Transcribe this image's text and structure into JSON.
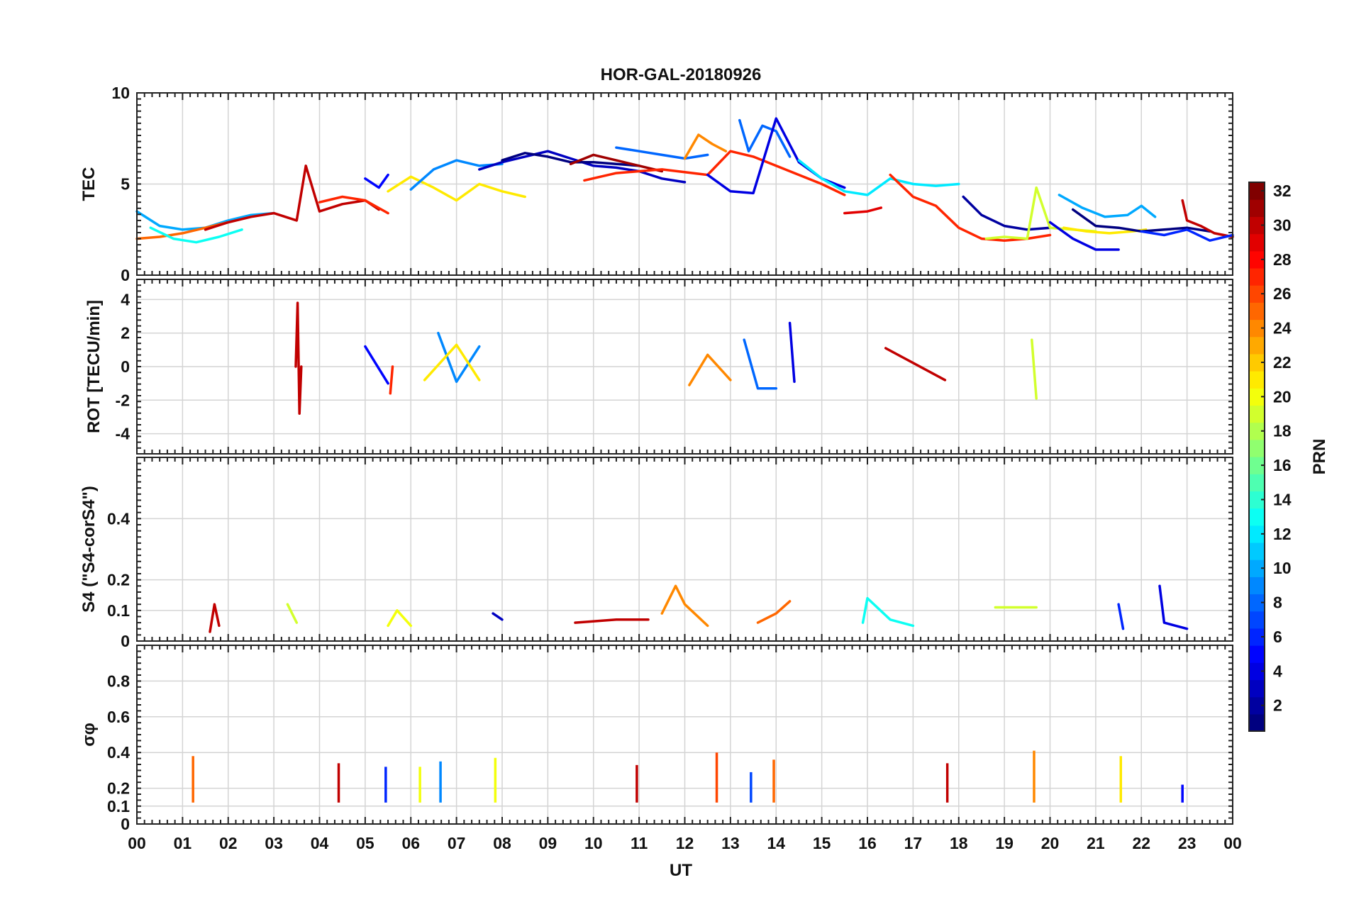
{
  "chart_data": {
    "type": "line",
    "title": "HOR-GAL-20180926",
    "xlabel": "UT",
    "x_tick_labels": [
      "00",
      "01",
      "02",
      "03",
      "04",
      "05",
      "06",
      "07",
      "08",
      "09",
      "10",
      "11",
      "12",
      "13",
      "14",
      "15",
      "16",
      "17",
      "18",
      "19",
      "20",
      "21",
      "22",
      "23",
      "00"
    ],
    "xlim_hours": [
      0,
      24
    ],
    "grid": true,
    "colorbar": {
      "label": "PRN",
      "range": [
        1,
        32
      ],
      "colormap": "jet",
      "tick_labels": [
        "2",
        "4",
        "6",
        "8",
        "10",
        "12",
        "14",
        "16",
        "18",
        "20",
        "22",
        "24",
        "26",
        "28",
        "30",
        "32"
      ]
    },
    "panels": [
      {
        "ylabel": "TEC",
        "ylim": [
          0,
          10
        ],
        "y_tick_labels": [
          "0",
          "5",
          "10"
        ],
        "series": [
          {
            "prn": 10,
            "x": [
              0.0,
              0.5,
              1.0,
              1.5,
              2.0,
              2.5,
              3.0
            ],
            "y": [
              3.5,
              2.7,
              2.5,
              2.6,
              3.0,
              3.3,
              3.4
            ]
          },
          {
            "prn": 25,
            "x": [
              0.0,
              0.5,
              1.0,
              1.5,
              2.0
            ],
            "y": [
              2.0,
              2.1,
              2.3,
              2.6,
              2.9
            ]
          },
          {
            "prn": 13,
            "x": [
              0.3,
              0.8,
              1.3,
              1.8,
              2.3
            ],
            "y": [
              2.6,
              2.0,
              1.8,
              2.1,
              2.5
            ]
          },
          {
            "prn": 30,
            "x": [
              1.5,
              2.0,
              2.5,
              3.0,
              3.5,
              3.7,
              4.0,
              4.5,
              5.0,
              5.3
            ],
            "y": [
              2.5,
              2.9,
              3.2,
              3.4,
              3.0,
              6.0,
              3.5,
              3.9,
              4.1,
              3.6
            ]
          },
          {
            "prn": 27,
            "x": [
              4.0,
              4.5,
              5.0,
              5.5
            ],
            "y": [
              4.0,
              4.3,
              4.1,
              3.4
            ]
          },
          {
            "prn": 5,
            "x": [
              5.0,
              5.3,
              5.5
            ],
            "y": [
              5.3,
              4.8,
              5.5
            ]
          },
          {
            "prn": 21,
            "x": [
              5.5,
              6.0,
              6.5,
              7.0,
              7.5,
              8.0,
              8.5
            ],
            "y": [
              4.6,
              5.4,
              4.8,
              4.1,
              5.0,
              4.6,
              4.3
            ]
          },
          {
            "prn": 9,
            "x": [
              6.0,
              6.5,
              7.0,
              7.5,
              8.0
            ],
            "y": [
              4.7,
              5.8,
              6.3,
              6.0,
              6.1
            ]
          },
          {
            "prn": 3,
            "x": [
              7.5,
              8.0,
              8.5,
              9.0,
              9.5,
              10.0,
              10.5,
              11.0,
              11.5,
              12.0
            ],
            "y": [
              5.8,
              6.2,
              6.5,
              6.8,
              6.4,
              6.0,
              5.9,
              5.7,
              5.3,
              5.1
            ]
          },
          {
            "prn": 1,
            "x": [
              8.0,
              8.5,
              9.0,
              9.5,
              10.0,
              10.5,
              11.0
            ],
            "y": [
              6.3,
              6.7,
              6.5,
              6.2,
              6.2,
              6.1,
              6.0
            ]
          },
          {
            "prn": 31,
            "x": [
              9.5,
              10.0,
              10.5,
              11.0,
              11.5
            ],
            "y": [
              6.1,
              6.6,
              6.3,
              6.0,
              5.7
            ]
          },
          {
            "prn": 8,
            "x": [
              10.5,
              11.0,
              11.5,
              12.0,
              12.5
            ],
            "y": [
              7.0,
              6.8,
              6.6,
              6.4,
              6.6
            ]
          },
          {
            "prn": 24,
            "x": [
              12.0,
              12.3,
              12.6,
              12.9
            ],
            "y": [
              6.4,
              7.7,
              7.2,
              6.8
            ]
          },
          {
            "prn": 27,
            "x": [
              9.8,
              10.5,
              11.5,
              12.5,
              13.0,
              13.5,
              14.0,
              14.5,
              15.0,
              15.5
            ],
            "y": [
              5.2,
              5.6,
              5.8,
              5.5,
              6.8,
              6.5,
              6.0,
              5.5,
              5.0,
              4.4
            ]
          },
          {
            "prn": 8,
            "x": [
              13.2,
              13.4,
              13.7,
              14.0,
              14.3
            ],
            "y": [
              8.5,
              6.8,
              8.2,
              7.9,
              6.5
            ]
          },
          {
            "prn": 4,
            "x": [
              12.5,
              13.0,
              13.5,
              14.0,
              14.5,
              15.0,
              15.5
            ],
            "y": [
              5.5,
              4.6,
              4.5,
              8.6,
              6.2,
              5.3,
              4.8
            ]
          },
          {
            "prn": 12,
            "x": [
              14.5,
              15.0,
              15.5,
              16.0,
              16.5,
              17.0,
              17.5,
              18.0
            ],
            "y": [
              6.3,
              5.3,
              4.6,
              4.4,
              5.3,
              5.0,
              4.9,
              5.0
            ]
          },
          {
            "prn": 29,
            "x": [
              15.5,
              16.0,
              16.3
            ],
            "y": [
              3.4,
              3.5,
              3.7
            ]
          },
          {
            "prn": 27,
            "x": [
              16.5,
              17.0,
              17.5,
              18.0,
              18.5,
              19.0,
              19.5,
              20.0
            ],
            "y": [
              5.5,
              4.3,
              3.8,
              2.6,
              2.0,
              1.9,
              2.0,
              2.2
            ]
          },
          {
            "prn": 2,
            "x": [
              18.1,
              18.5,
              19.0,
              19.5,
              20.0
            ],
            "y": [
              4.3,
              3.3,
              2.7,
              2.5,
              2.6
            ]
          },
          {
            "prn": 19,
            "x": [
              18.6,
              19.0,
              19.5,
              19.7,
              20.0,
              20.5,
              21.0
            ],
            "y": [
              2.0,
              2.1,
              2.0,
              4.8,
              2.6,
              2.5,
              2.4
            ]
          },
          {
            "prn": 10,
            "x": [
              20.2,
              20.7,
              21.2,
              21.7,
              22.0,
              22.3
            ],
            "y": [
              4.4,
              3.7,
              3.2,
              3.3,
              3.8,
              3.2
            ]
          },
          {
            "prn": 4,
            "x": [
              20.0,
              20.5,
              21.0,
              21.5
            ],
            "y": [
              2.9,
              2.0,
              1.4,
              1.4
            ]
          },
          {
            "prn": 21,
            "x": [
              20.3,
              20.8,
              21.3,
              21.8,
              22.1
            ],
            "y": [
              2.6,
              2.4,
              2.3,
              2.4,
              2.5
            ]
          },
          {
            "prn": 1,
            "x": [
              20.5,
              21.0,
              21.5,
              22.0,
              22.5,
              23.0,
              23.5
            ],
            "y": [
              3.6,
              2.7,
              2.6,
              2.4,
              2.5,
              2.6,
              2.4
            ]
          },
          {
            "prn": 30,
            "x": [
              22.9,
              23.0,
              23.3,
              23.6,
              24.0
            ],
            "y": [
              4.1,
              3.0,
              2.7,
              2.3,
              2.1
            ]
          },
          {
            "prn": 6,
            "x": [
              22.0,
              22.5,
              23.0,
              23.5,
              24.0
            ],
            "y": [
              2.4,
              2.2,
              2.5,
              1.9,
              2.2
            ]
          }
        ]
      },
      {
        "ylabel": "ROT [TECU/min]",
        "ylim": [
          -5.2,
          5.2
        ],
        "y_tick_labels": [
          "-4",
          "-2",
          "0",
          "2",
          "4"
        ],
        "series": [
          {
            "prn": 30,
            "x": [
              3.48,
              3.52,
              3.56,
              3.6
            ],
            "y": [
              0,
              3.8,
              -2.8,
              0
            ]
          },
          {
            "prn": 5,
            "x": [
              5.0,
              5.5
            ],
            "y": [
              1.2,
              -1.0
            ]
          },
          {
            "prn": 27,
            "x": [
              5.55,
              5.6
            ],
            "y": [
              -1.6,
              0
            ]
          },
          {
            "prn": 9,
            "x": [
              6.6,
              7.0,
              7.5
            ],
            "y": [
              2.0,
              -0.9,
              1.2
            ]
          },
          {
            "prn": 21,
            "x": [
              6.3,
              7.0,
              7.5
            ],
            "y": [
              -0.8,
              1.3,
              -0.8
            ]
          },
          {
            "prn": 24,
            "x": [
              12.1,
              12.5,
              13.0
            ],
            "y": [
              -1.1,
              0.7,
              -0.8
            ]
          },
          {
            "prn": 8,
            "x": [
              13.3,
              13.6,
              14.0
            ],
            "y": [
              1.6,
              -1.3,
              -1.3
            ]
          },
          {
            "prn": 4,
            "x": [
              14.3,
              14.4
            ],
            "y": [
              2.6,
              -0.9
            ]
          },
          {
            "prn": 19,
            "x": [
              19.6,
              19.7
            ],
            "y": [
              1.6,
              -1.9
            ]
          },
          {
            "prn": 30,
            "x": [
              16.4,
              17.7
            ],
            "y": [
              1.1,
              -0.8
            ]
          }
        ]
      },
      {
        "ylabel": "S4 (\"S4-corS4\")",
        "ylim": [
          0,
          0.6
        ],
        "y_tick_labels": [
          "0",
          "0.1",
          "0.2",
          "0.4"
        ],
        "series": [
          {
            "prn": 30,
            "x": [
              1.6,
              1.7,
              1.8
            ],
            "y": [
              0.03,
              0.12,
              0.05
            ]
          },
          {
            "prn": 19,
            "x": [
              3.3,
              3.5
            ],
            "y": [
              0.12,
              0.06
            ]
          },
          {
            "prn": 20,
            "x": [
              5.5,
              5.7,
              6.0
            ],
            "y": [
              0.05,
              0.1,
              0.05
            ]
          },
          {
            "prn": 3,
            "x": [
              7.8,
              8.0
            ],
            "y": [
              0.09,
              0.07
            ]
          },
          {
            "prn": 30,
            "x": [
              9.6,
              10.5,
              11.2
            ],
            "y": [
              0.06,
              0.07,
              0.07
            ]
          },
          {
            "prn": 24,
            "x": [
              11.5,
              11.8,
              12.0,
              12.5
            ],
            "y": [
              0.09,
              0.18,
              0.12,
              0.05
            ]
          },
          {
            "prn": 25,
            "x": [
              13.6,
              14.0,
              14.3
            ],
            "y": [
              0.06,
              0.09,
              0.13
            ]
          },
          {
            "prn": 13,
            "x": [
              15.9,
              16.0,
              16.5,
              17.0
            ],
            "y": [
              0.06,
              0.14,
              0.07,
              0.05
            ]
          },
          {
            "prn": 19,
            "x": [
              18.8,
              19.7
            ],
            "y": [
              0.11,
              0.11
            ]
          },
          {
            "prn": 6,
            "x": [
              21.5,
              21.6
            ],
            "y": [
              0.12,
              0.04
            ]
          },
          {
            "prn": 4,
            "x": [
              22.4,
              22.5,
              23.0
            ],
            "y": [
              0.18,
              0.06,
              0.04
            ]
          }
        ]
      },
      {
        "ylabel": "σφ",
        "ylim": [
          0,
          1
        ],
        "y_tick_labels": [
          "0",
          "0.1",
          "0.2",
          "0.4",
          "0.6",
          "0.8"
        ],
        "series": [
          {
            "prn": 25,
            "x": [
              1.23
            ],
            "y": [
              0.38
            ]
          },
          {
            "prn": 30,
            "x": [
              4.42
            ],
            "y": [
              0.34
            ]
          },
          {
            "prn": 6,
            "x": [
              5.45
            ],
            "y": [
              0.32
            ]
          },
          {
            "prn": 20,
            "x": [
              6.2
            ],
            "y": [
              0.32
            ]
          },
          {
            "prn": 9,
            "x": [
              6.65
            ],
            "y": [
              0.35
            ]
          },
          {
            "prn": 20,
            "x": [
              7.85
            ],
            "y": [
              0.37
            ]
          },
          {
            "prn": 30,
            "x": [
              10.95
            ],
            "y": [
              0.33
            ]
          },
          {
            "prn": 26,
            "x": [
              12.7
            ],
            "y": [
              0.4
            ]
          },
          {
            "prn": 7,
            "x": [
              13.45
            ],
            "y": [
              0.29
            ]
          },
          {
            "prn": 25,
            "x": [
              13.95
            ],
            "y": [
              0.36
            ]
          },
          {
            "prn": 30,
            "x": [
              17.75
            ],
            "y": [
              0.34
            ]
          },
          {
            "prn": 24,
            "x": [
              19.65
            ],
            "y": [
              0.41
            ]
          },
          {
            "prn": 21,
            "x": [
              21.55
            ],
            "y": [
              0.38
            ]
          },
          {
            "prn": 5,
            "x": [
              22.9
            ],
            "y": [
              0.22
            ]
          }
        ]
      }
    ]
  }
}
